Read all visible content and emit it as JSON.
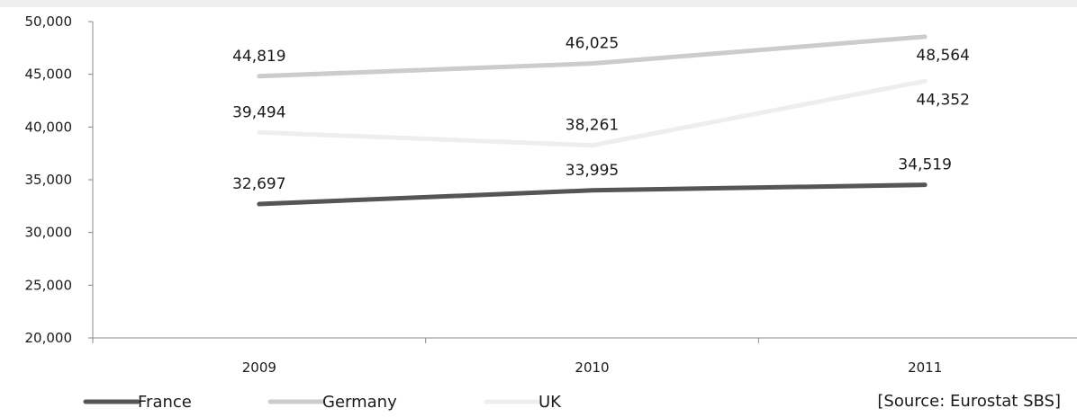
{
  "chart_data": {
    "type": "line",
    "title": "",
    "xlabel": "",
    "ylabel": "",
    "categories": [
      "2009",
      "2010",
      "2011"
    ],
    "ylim": [
      20000,
      50000
    ],
    "yticks": [
      "20,000",
      "25,000",
      "30,000",
      "35,000",
      "40,000",
      "45,000",
      "50,000"
    ],
    "ytick_values": [
      20000,
      25000,
      30000,
      35000,
      40000,
      45000,
      50000
    ],
    "grid": false,
    "legend_position": "bottom-left",
    "series": [
      {
        "name": "France",
        "color": "#555555",
        "values": [
          32697,
          33995,
          34519
        ],
        "labels": [
          "32,697",
          "33,995",
          "34,519"
        ]
      },
      {
        "name": "Germany",
        "color": "#cccccc",
        "values": [
          44819,
          46025,
          48564
        ],
        "labels": [
          "44,819",
          "46,025",
          "48,564"
        ]
      },
      {
        "name": "UK",
        "color": "#eeeeee",
        "values": [
          39494,
          38261,
          44352
        ],
        "labels": [
          "39,494",
          "38,261",
          "44,352"
        ]
      }
    ],
    "source": "[Source: Eurostat SBS]"
  }
}
